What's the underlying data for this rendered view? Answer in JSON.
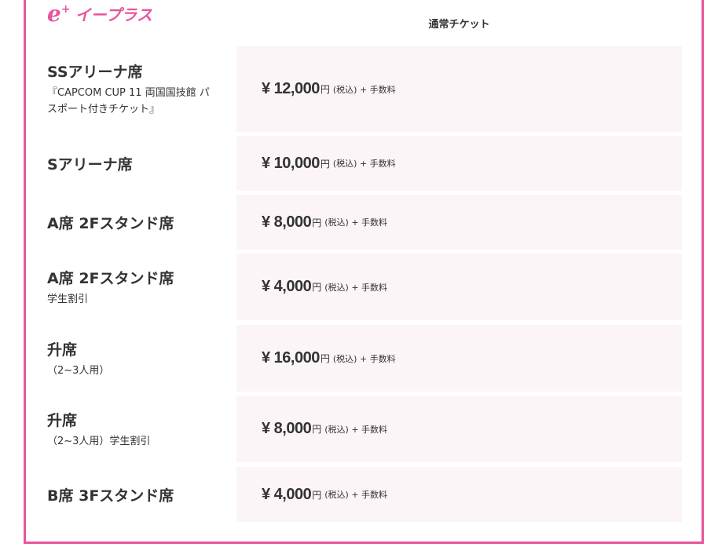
{
  "brand": {
    "logo_mark": "e",
    "logo_plus": "+",
    "logo_name": "イープラス",
    "color": "#e8559d"
  },
  "header": {
    "column": "通常チケット"
  },
  "rows": [
    {
      "seat": "SSアリーナ席",
      "note": "『CAPCOM CUP 11 両国国技館 パスポート付きチケット』",
      "price": "¥ 12,000"
    },
    {
      "seat": "Sアリーナ席",
      "note": "",
      "price": "¥ 10,000"
    },
    {
      "seat": "A席 2Fスタンド席",
      "note": "",
      "price": "¥ 8,000"
    },
    {
      "seat": "A席 2Fスタンド席",
      "note": "学生割引",
      "price": "¥ 4,000"
    },
    {
      "seat": "升席",
      "note": "（2~3人用）",
      "price": "¥ 16,000"
    },
    {
      "seat": "升席",
      "note": "（2~3人用）学生割引",
      "price": "¥ 8,000"
    },
    {
      "seat": "B席 3Fスタンド席",
      "note": "",
      "price": "¥ 4,000"
    }
  ],
  "price_unit": "円",
  "price_suffix": "(税込) + 手数料"
}
